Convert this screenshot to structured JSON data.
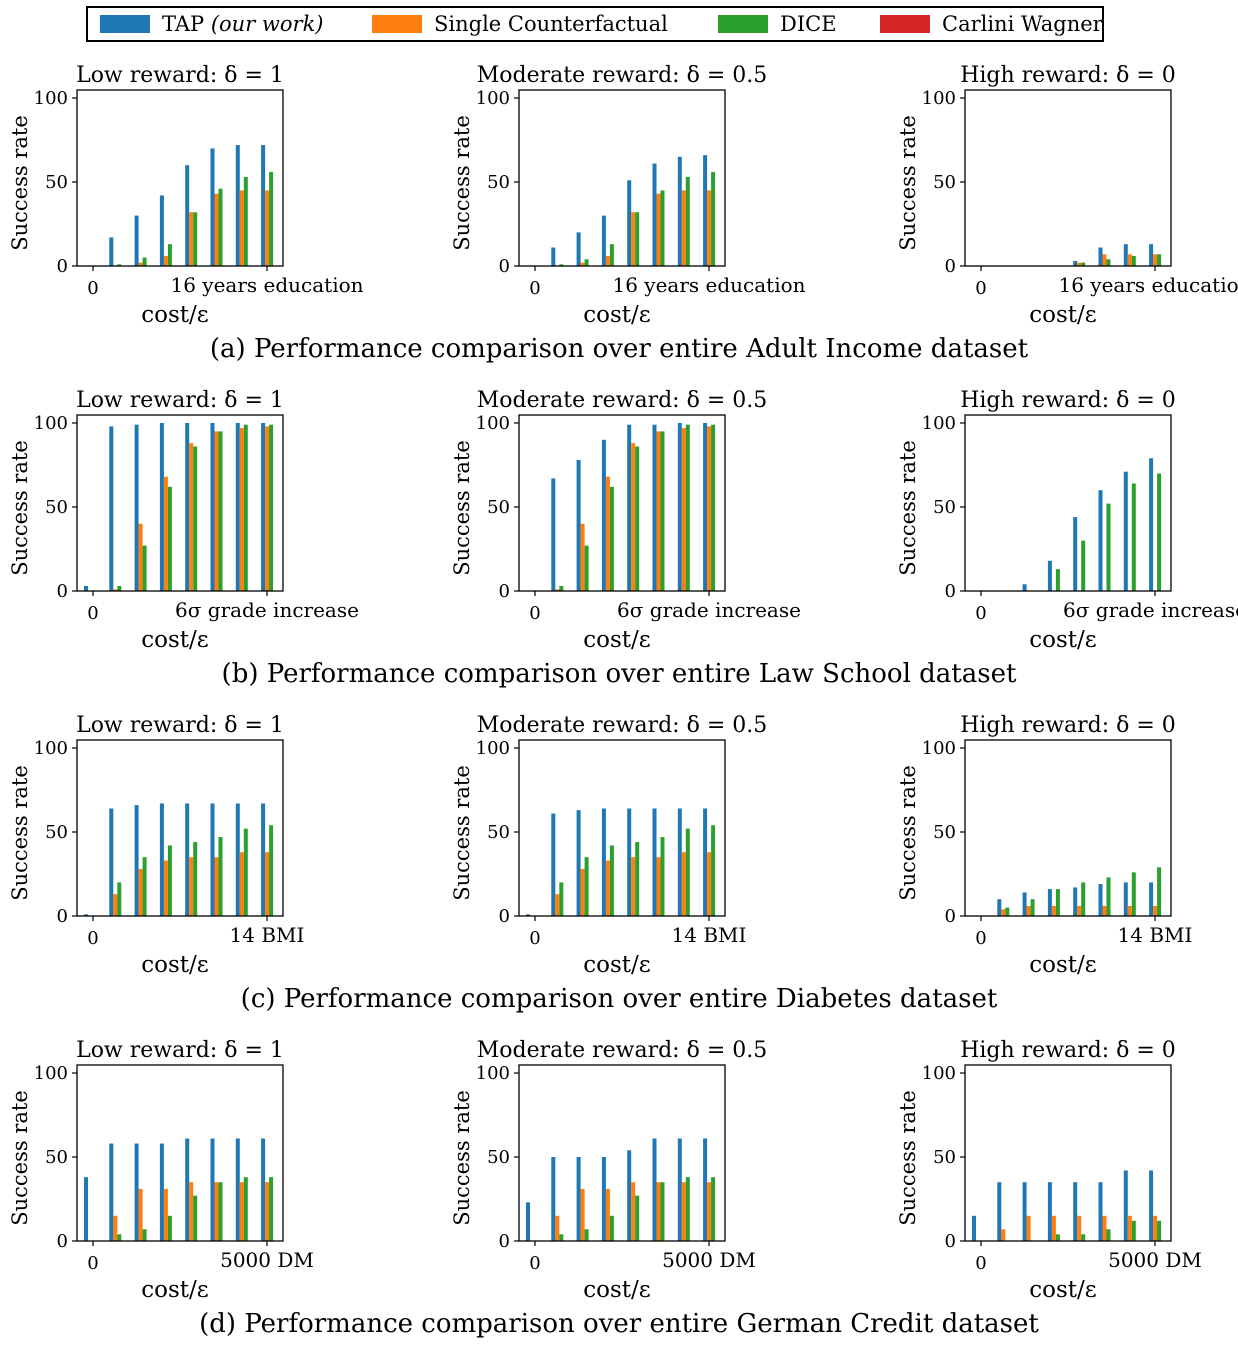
{
  "legend": {
    "items": [
      {
        "label": "TAP",
        "label_suffix": "(our work)",
        "color": "#1f77b4"
      },
      {
        "label": "Single Counterfactual",
        "color": "#ff7f0e"
      },
      {
        "label": "DICE",
        "color": "#2ca02c"
      },
      {
        "label": "Carlini Wagner",
        "color": "#d62728"
      }
    ]
  },
  "common": {
    "ylabel": "Success rate",
    "xlabel": "cost/ε",
    "yticks": [
      "0",
      "50",
      "100"
    ],
    "x0_label": "0"
  },
  "rows": [
    {
      "caption": "(a) Performance comparison over entire Adult Income dataset",
      "xmax_label": "16 years education"
    },
    {
      "caption": "(b) Performance comparison over entire Law School dataset",
      "xmax_label": "6σ grade increase"
    },
    {
      "caption": "(c) Performance comparison over entire Diabetes dataset",
      "xmax_label": "14 BMI"
    },
    {
      "caption": "(d) Performance comparison over entire German Credit dataset",
      "xmax_label": "5000 DM"
    }
  ],
  "columns": [
    {
      "title": "Low reward:  δ = 1"
    },
    {
      "title": "Moderate reward:  δ = 0.5"
    },
    {
      "title": "High reward:  δ = 0"
    }
  ],
  "chart_data": [
    {
      "type": "bar",
      "row": 0,
      "col": 0,
      "title": "Low reward:  δ = 1",
      "ylabel": "Success rate",
      "xlabel": "cost/ε",
      "ylim": [
        0,
        100
      ],
      "x": [
        0,
        1,
        2,
        3,
        4,
        5,
        6,
        7
      ],
      "series": [
        {
          "name": "TAP",
          "values": [
            0,
            17,
            30,
            42,
            60,
            70,
            72,
            72
          ]
        },
        {
          "name": "Single Counterfactual",
          "values": [
            0,
            0,
            2,
            6,
            32,
            43,
            45,
            45
          ]
        },
        {
          "name": "DICE",
          "values": [
            0,
            1,
            5,
            13,
            32,
            46,
            53,
            56
          ]
        },
        {
          "name": "Carlini Wagner",
          "values": [
            0,
            0,
            0,
            0,
            0,
            0,
            0,
            0
          ]
        }
      ]
    },
    {
      "type": "bar",
      "row": 0,
      "col": 1,
      "title": "Moderate reward:  δ = 0.5",
      "ylabel": "Success rate",
      "xlabel": "cost/ε",
      "ylim": [
        0,
        100
      ],
      "x": [
        0,
        1,
        2,
        3,
        4,
        5,
        6,
        7
      ],
      "series": [
        {
          "name": "TAP",
          "values": [
            0,
            11,
            20,
            30,
            51,
            61,
            65,
            66
          ]
        },
        {
          "name": "Single Counterfactual",
          "values": [
            0,
            0,
            2,
            6,
            32,
            43,
            45,
            45
          ]
        },
        {
          "name": "DICE",
          "values": [
            0,
            1,
            4,
            13,
            32,
            45,
            53,
            56
          ]
        },
        {
          "name": "Carlini Wagner",
          "values": [
            0,
            0,
            0,
            0,
            0,
            0,
            0,
            0
          ]
        }
      ]
    },
    {
      "type": "bar",
      "row": 0,
      "col": 2,
      "title": "High reward:  δ = 0",
      "ylabel": "Success rate",
      "xlabel": "cost/ε",
      "ylim": [
        0,
        100
      ],
      "x": [
        0,
        1,
        2,
        3,
        4,
        5,
        6,
        7
      ],
      "series": [
        {
          "name": "TAP",
          "values": [
            0,
            0,
            0,
            0,
            3,
            11,
            13,
            13
          ]
        },
        {
          "name": "Single Counterfactual",
          "values": [
            0,
            0,
            0,
            0,
            2,
            7,
            7,
            7
          ]
        },
        {
          "name": "DICE",
          "values": [
            0,
            0,
            0,
            0,
            2,
            4,
            6,
            7
          ]
        },
        {
          "name": "Carlini Wagner",
          "values": [
            0,
            0,
            0,
            0,
            0,
            0,
            0,
            0
          ]
        }
      ]
    },
    {
      "type": "bar",
      "row": 1,
      "col": 0,
      "title": "Low reward:  δ = 1",
      "ylabel": "Success rate",
      "xlabel": "cost/ε",
      "ylim": [
        0,
        100
      ],
      "x": [
        0,
        1,
        2,
        3,
        4,
        5,
        6,
        7
      ],
      "series": [
        {
          "name": "TAP",
          "values": [
            3,
            98,
            99,
            100,
            100,
            100,
            100,
            100
          ]
        },
        {
          "name": "Single Counterfactual",
          "values": [
            0,
            1,
            40,
            68,
            88,
            95,
            97,
            98
          ]
        },
        {
          "name": "DICE",
          "values": [
            0,
            3,
            27,
            62,
            86,
            95,
            99,
            99
          ]
        },
        {
          "name": "Carlini Wagner",
          "values": [
            0,
            0,
            0,
            0,
            0,
            0,
            0,
            0
          ]
        }
      ]
    },
    {
      "type": "bar",
      "row": 1,
      "col": 1,
      "title": "Moderate reward:  δ = 0.5",
      "ylabel": "Success rate",
      "xlabel": "cost/ε",
      "ylim": [
        0,
        100
      ],
      "x": [
        0,
        1,
        2,
        3,
        4,
        5,
        6,
        7
      ],
      "series": [
        {
          "name": "TAP",
          "values": [
            0,
            67,
            78,
            90,
            99,
            99,
            100,
            100
          ]
        },
        {
          "name": "Single Counterfactual",
          "values": [
            0,
            1,
            40,
            68,
            88,
            95,
            97,
            98
          ]
        },
        {
          "name": "DICE",
          "values": [
            0,
            3,
            27,
            62,
            86,
            95,
            99,
            99
          ]
        },
        {
          "name": "Carlini Wagner",
          "values": [
            0,
            0,
            0,
            0,
            0,
            0,
            0,
            0
          ]
        }
      ]
    },
    {
      "type": "bar",
      "row": 1,
      "col": 2,
      "title": "High reward:  δ = 0",
      "ylabel": "Success rate",
      "xlabel": "cost/ε",
      "ylim": [
        0,
        100
      ],
      "x": [
        0,
        1,
        2,
        3,
        4,
        5,
        6,
        7
      ],
      "series": [
        {
          "name": "TAP",
          "values": [
            0,
            0,
            4,
            18,
            44,
            60,
            71,
            79
          ]
        },
        {
          "name": "Single Counterfactual",
          "values": [
            0,
            0,
            0,
            0,
            0,
            0,
            0,
            0
          ]
        },
        {
          "name": "DICE",
          "values": [
            0,
            0,
            0,
            13,
            30,
            52,
            64,
            70
          ]
        },
        {
          "name": "Carlini Wagner",
          "values": [
            0,
            0,
            0,
            0,
            0,
            0,
            0,
            0
          ]
        }
      ]
    },
    {
      "type": "bar",
      "row": 2,
      "col": 0,
      "title": "Low reward:  δ = 1",
      "ylabel": "Success rate",
      "xlabel": "cost/ε",
      "ylim": [
        0,
        100
      ],
      "x": [
        0,
        1,
        2,
        3,
        4,
        5,
        6,
        7
      ],
      "series": [
        {
          "name": "TAP",
          "values": [
            1,
            64,
            66,
            67,
            67,
            67,
            67,
            67
          ]
        },
        {
          "name": "Single Counterfactual",
          "values": [
            0,
            13,
            28,
            33,
            35,
            35,
            38,
            38
          ]
        },
        {
          "name": "DICE",
          "values": [
            0,
            20,
            35,
            42,
            44,
            47,
            52,
            54
          ]
        },
        {
          "name": "Carlini Wagner",
          "values": [
            0,
            0,
            0,
            0,
            0,
            0,
            0,
            0
          ]
        }
      ]
    },
    {
      "type": "bar",
      "row": 2,
      "col": 1,
      "title": "Moderate reward:  δ = 0.5",
      "ylabel": "Success rate",
      "xlabel": "cost/ε",
      "ylim": [
        0,
        100
      ],
      "x": [
        0,
        1,
        2,
        3,
        4,
        5,
        6,
        7
      ],
      "series": [
        {
          "name": "TAP",
          "values": [
            1,
            61,
            63,
            64,
            64,
            64,
            64,
            64
          ]
        },
        {
          "name": "Single Counterfactual",
          "values": [
            0,
            13,
            28,
            33,
            35,
            35,
            38,
            38
          ]
        },
        {
          "name": "DICE",
          "values": [
            0,
            20,
            35,
            42,
            44,
            47,
            52,
            54
          ]
        },
        {
          "name": "Carlini Wagner",
          "values": [
            0,
            0,
            0,
            0,
            0,
            0,
            0,
            0
          ]
        }
      ]
    },
    {
      "type": "bar",
      "row": 2,
      "col": 2,
      "title": "High reward:  δ = 0",
      "ylabel": "Success rate",
      "xlabel": "cost/ε",
      "ylim": [
        0,
        100
      ],
      "x": [
        0,
        1,
        2,
        3,
        4,
        5,
        6,
        7
      ],
      "series": [
        {
          "name": "TAP",
          "values": [
            0,
            10,
            14,
            16,
            17,
            19,
            20,
            20
          ]
        },
        {
          "name": "Single Counterfactual",
          "values": [
            0,
            4,
            6,
            6,
            6,
            6,
            6,
            6
          ]
        },
        {
          "name": "DICE",
          "values": [
            0,
            5,
            10,
            16,
            20,
            23,
            26,
            29
          ]
        },
        {
          "name": "Carlini Wagner",
          "values": [
            0,
            0,
            0,
            0,
            0,
            0,
            0,
            0
          ]
        }
      ]
    },
    {
      "type": "bar",
      "row": 3,
      "col": 0,
      "title": "Low reward:  δ = 1",
      "ylabel": "Success rate",
      "xlabel": "cost/ε",
      "ylim": [
        0,
        100
      ],
      "x": [
        0,
        1,
        2,
        3,
        4,
        5,
        6,
        7
      ],
      "series": [
        {
          "name": "TAP",
          "values": [
            38,
            58,
            58,
            58,
            61,
            61,
            61,
            61
          ]
        },
        {
          "name": "Single Counterfactual",
          "values": [
            0,
            15,
            31,
            31,
            35,
            35,
            35,
            35
          ]
        },
        {
          "name": "DICE",
          "values": [
            0,
            4,
            7,
            15,
            27,
            35,
            38,
            38
          ]
        },
        {
          "name": "Carlini Wagner",
          "values": [
            0,
            0,
            0,
            0,
            0,
            0,
            0,
            0
          ]
        }
      ]
    },
    {
      "type": "bar",
      "row": 3,
      "col": 1,
      "title": "Moderate reward:  δ = 0.5",
      "ylabel": "Success rate",
      "xlabel": "cost/ε",
      "ylim": [
        0,
        100
      ],
      "x": [
        0,
        1,
        2,
        3,
        4,
        5,
        6,
        7
      ],
      "series": [
        {
          "name": "TAP",
          "values": [
            23,
            50,
            50,
            50,
            54,
            61,
            61,
            61
          ]
        },
        {
          "name": "Single Counterfactual",
          "values": [
            0,
            15,
            31,
            31,
            35,
            35,
            35,
            35
          ]
        },
        {
          "name": "DICE",
          "values": [
            0,
            4,
            7,
            15,
            27,
            35,
            38,
            38
          ]
        },
        {
          "name": "Carlini Wagner",
          "values": [
            0,
            0,
            0,
            0,
            0,
            0,
            0,
            0
          ]
        }
      ]
    },
    {
      "type": "bar",
      "row": 3,
      "col": 2,
      "title": "High reward:  δ = 0",
      "ylabel": "Success rate",
      "xlabel": "cost/ε",
      "ylim": [
        0,
        100
      ],
      "x": [
        0,
        1,
        2,
        3,
        4,
        5,
        6,
        7
      ],
      "series": [
        {
          "name": "TAP",
          "values": [
            15,
            35,
            35,
            35,
            35,
            35,
            42,
            42
          ]
        },
        {
          "name": "Single Counterfactual",
          "values": [
            0,
            7,
            15,
            15,
            15,
            15,
            15,
            15
          ]
        },
        {
          "name": "DICE",
          "values": [
            0,
            0,
            0,
            4,
            4,
            7,
            12,
            12
          ]
        },
        {
          "name": "Carlini Wagner",
          "values": [
            0,
            0,
            0,
            0,
            0,
            0,
            0,
            0
          ]
        }
      ]
    }
  ]
}
